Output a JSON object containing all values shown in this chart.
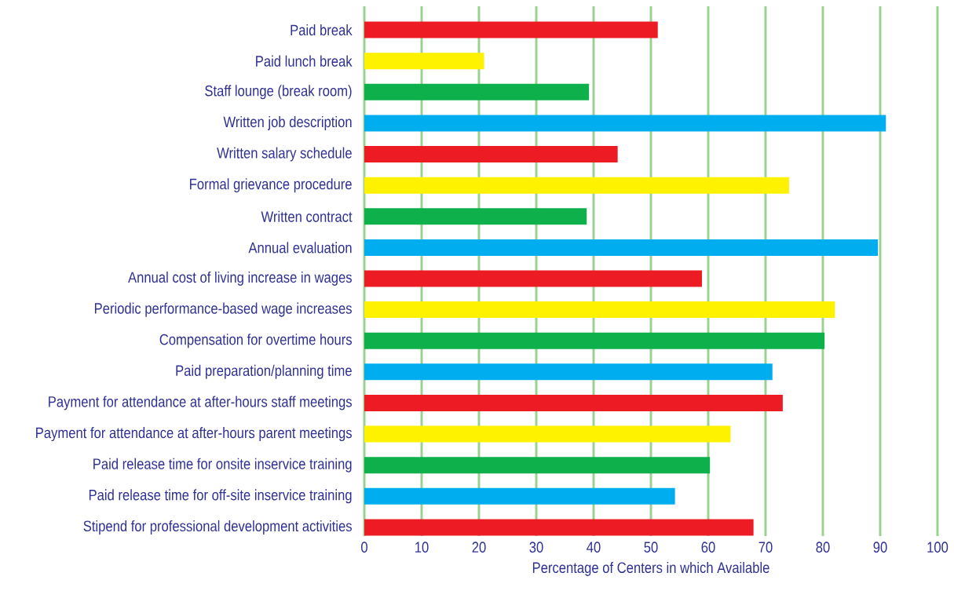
{
  "chart_data": {
    "type": "bar",
    "orientation": "horizontal",
    "xlabel": "Percentage of Centers in which Available",
    "categories": [
      "Paid break",
      "Paid lunch break",
      "Staff lounge (break room)",
      "Written job description",
      "Written salary schedule",
      "Formal grievance procedure",
      "Written contract",
      "Annual evaluation",
      "Annual cost of living increase in wages",
      "Periodic performance-based wage increases",
      "Compensation for overtime hours",
      "Paid preparation/planning time",
      "Payment for attendance at after-hours staff meetings",
      "Payment for attendance at after-hours parent meetings",
      "Paid release time for onsite inservice training",
      "Paid release time for off-site inservice training",
      "Stipend for professional development activities"
    ],
    "values": [
      51.2,
      20.9,
      39.2,
      91.0,
      44.2,
      74.1,
      38.8,
      89.6,
      58.9,
      82.1,
      80.3,
      71.2,
      73.0,
      63.9,
      60.3,
      54.2,
      67.9
    ],
    "colors": [
      "#ed1c24",
      "#fff200",
      "#0db04b",
      "#00aeef",
      "#ed1c24",
      "#fff200",
      "#0db04b",
      "#00aeef",
      "#ed1c24",
      "#fff200",
      "#0db04b",
      "#00aeef",
      "#ed1c24",
      "#fff200",
      "#0db04b",
      "#00aeef",
      "#ed1c24"
    ],
    "xlim": [
      0,
      100
    ],
    "xticks": [
      0,
      10,
      20,
      30,
      40,
      50,
      60,
      70,
      80,
      90,
      100
    ],
    "grid": "x"
  }
}
